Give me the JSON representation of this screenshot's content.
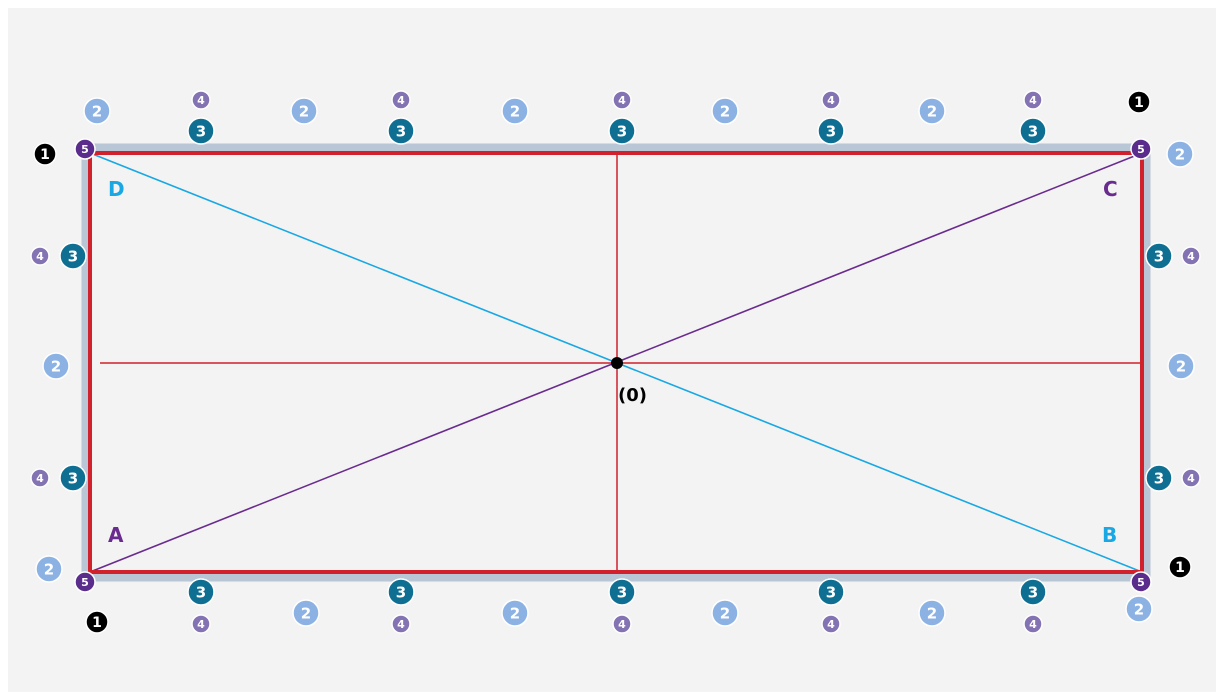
{
  "diagram": {
    "center_label": "(0)",
    "corner_labels": {
      "A": "A",
      "B": "B",
      "C": "C",
      "D": "D"
    },
    "badges": {
      "one": "1",
      "two": "2",
      "three": "3",
      "four": "4",
      "five": "5"
    },
    "colors": {
      "background_outer": "#ffffff",
      "background_inner": "#f3f3f3",
      "frame_red": "#d0212c",
      "diagonal_db": "#19a8e3",
      "diagonal_ac": "#6a2b8f",
      "badge1": "#000000",
      "badge2": "#8cb2e4",
      "badge3": "#0f6f92",
      "badge4": "#8473b2",
      "badge5": "#5a2d8c",
      "label_A": "#6a2b8f",
      "label_B": "#19a8e3",
      "label_C": "#6a2b8f",
      "label_D": "#19a8e3",
      "pipe": "#b9c6d5"
    }
  }
}
